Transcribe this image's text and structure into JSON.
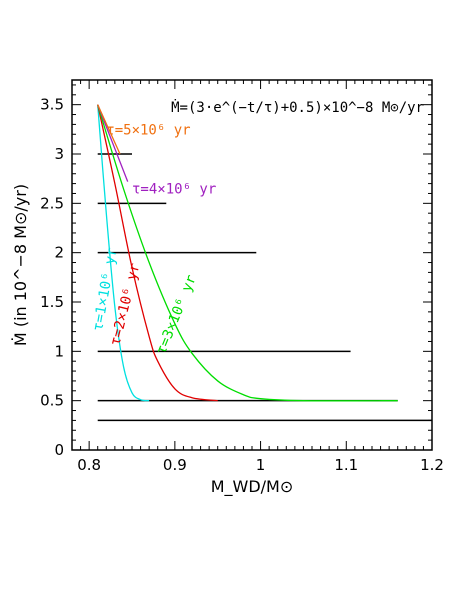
{
  "chart_data": {
    "type": "line",
    "formula": "Ṁ=(3·e^(−t/τ)+0.5)×10^−8 M⊙/yr",
    "xlabel": "M_WD/M⊙",
    "ylabel": "Ṁ (in 10^−8 M⊙/yr)",
    "xlim": [
      0.78,
      1.2
    ],
    "ylim": [
      0,
      3.75
    ],
    "x_ticks": [
      "0.8",
      "0.9",
      "1",
      "1.1",
      "1.2"
    ],
    "y_ticks": [
      "0",
      "0.5",
      "1",
      "1.5",
      "2",
      "2.5",
      "3",
      "3.5"
    ],
    "reference_lines": [
      {
        "y": 3.0,
        "x": [
          0.81,
          0.85
        ]
      },
      {
        "y": 2.5,
        "x": [
          0.81,
          0.89
        ]
      },
      {
        "y": 2.0,
        "x": [
          0.81,
          0.995
        ]
      },
      {
        "y": 1.0,
        "x": [
          0.81,
          1.105
        ]
      },
      {
        "y": 0.5,
        "x": [
          0.81,
          1.16
        ]
      },
      {
        "y": 0.3,
        "x": [
          0.81,
          1.2
        ]
      }
    ],
    "series": [
      {
        "name": "τ=1×10⁶ yr",
        "color": "#00e0e0",
        "label_pos": [
          0.815,
          1.2
        ],
        "label_rot": 80,
        "x": [
          0.81,
          0.82,
          0.83,
          0.84,
          0.85,
          0.86,
          0.87
        ],
        "y": [
          3.5,
          2.4,
          1.45,
          0.85,
          0.58,
          0.51,
          0.5
        ]
      },
      {
        "name": "τ=2×10⁶ yr",
        "color": "#e00000",
        "label_pos": [
          0.835,
          1.05
        ],
        "label_rot": 76,
        "x": [
          0.81,
          0.83,
          0.85,
          0.87,
          0.88,
          0.9,
          0.92,
          0.95
        ],
        "y": [
          3.5,
          2.7,
          1.85,
          1.15,
          0.9,
          0.62,
          0.53,
          0.5
        ]
      },
      {
        "name": "τ=3×10⁶ yr",
        "color": "#00dd00",
        "label_pos": [
          0.888,
          0.96
        ],
        "label_rot": 68,
        "x": [
          0.81,
          0.84,
          0.87,
          0.9,
          0.92,
          0.95,
          0.98,
          1.0,
          1.05,
          1.16
        ],
        "y": [
          3.5,
          2.65,
          1.9,
          1.28,
          0.98,
          0.7,
          0.56,
          0.52,
          0.5,
          0.5
        ]
      },
      {
        "name": "τ=4×10⁶ yr",
        "color": "#a020c0",
        "label_pos": [
          0.85,
          2.6
        ],
        "label_rot": 0,
        "x": [
          0.81,
          0.845
        ],
        "y": [
          3.5,
          2.72
        ]
      },
      {
        "name": "τ=5×10⁶ yr",
        "color": "#f07010",
        "label_pos": [
          0.82,
          3.2
        ],
        "label_rot": 0,
        "x": [
          0.81,
          0.836
        ],
        "y": [
          3.5,
          3.0
        ]
      }
    ]
  }
}
